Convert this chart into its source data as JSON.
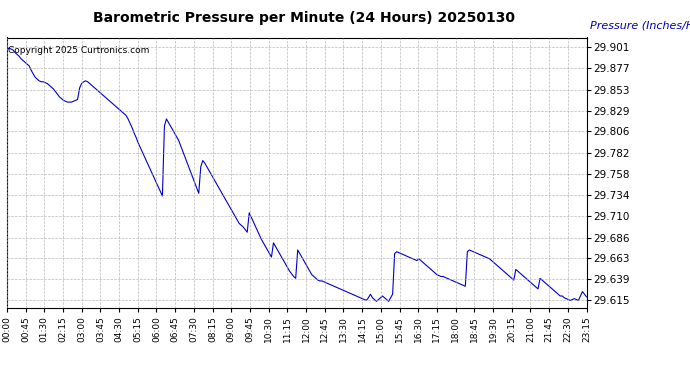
{
  "title": "Barometric Pressure per Minute (24 Hours) 20250130",
  "copyright_text": "Copyright 2025 Curtronics.com",
  "ylabel": "Pressure (Inches/Hg)",
  "background_color": "#ffffff",
  "line_color": "#0000cc",
  "ylabel_color": "#0000bb",
  "copyright_color": "#000000",
  "title_color": "#000000",
  "yticks": [
    29.615,
    29.639,
    29.663,
    29.686,
    29.71,
    29.734,
    29.758,
    29.782,
    29.806,
    29.829,
    29.853,
    29.877,
    29.901
  ],
  "ymin": 29.607,
  "ymax": 29.912,
  "x_tick_labels": [
    "00:00",
    "00:45",
    "01:30",
    "02:15",
    "03:00",
    "03:45",
    "04:30",
    "05:15",
    "06:00",
    "06:45",
    "07:30",
    "08:15",
    "09:00",
    "09:45",
    "10:30",
    "11:15",
    "12:00",
    "12:45",
    "13:30",
    "14:15",
    "15:00",
    "15:45",
    "16:30",
    "17:15",
    "18:00",
    "18:45",
    "19:30",
    "20:15",
    "21:00",
    "21:45",
    "22:30",
    "23:15"
  ],
  "grid_color": "#aaaaaa",
  "grid_linestyle": "--",
  "pressure_profile": [
    29.898,
    29.9,
    29.899,
    29.898,
    29.895,
    29.893,
    29.891,
    29.888,
    29.886,
    29.884,
    29.882,
    29.88,
    29.875,
    29.871,
    29.867,
    29.865,
    29.863,
    29.862,
    29.862,
    29.861,
    29.86,
    29.858,
    29.856,
    29.854,
    29.851,
    29.848,
    29.845,
    29.843,
    29.841,
    29.84,
    29.839,
    29.839,
    29.839,
    29.84,
    29.841,
    29.842,
    29.855,
    29.86,
    29.862,
    29.863,
    29.862,
    29.86,
    29.858,
    29.856,
    29.854,
    29.852,
    29.85,
    29.848,
    29.846,
    29.844,
    29.842,
    29.84,
    29.838,
    29.836,
    29.834,
    29.832,
    29.83,
    29.828,
    29.826,
    29.824,
    29.82,
    29.815,
    29.81,
    29.804,
    29.799,
    29.793,
    29.788,
    29.783,
    29.778,
    29.773,
    29.768,
    29.763,
    29.758,
    29.753,
    29.748,
    29.743,
    29.738,
    29.733,
    29.812,
    29.82,
    29.816,
    29.812,
    29.808,
    29.804,
    29.8,
    29.796,
    29.79,
    29.784,
    29.778,
    29.772,
    29.766,
    29.76,
    29.754,
    29.748,
    29.742,
    29.736,
    29.766,
    29.773,
    29.77,
    29.766,
    29.762,
    29.758,
    29.754,
    29.75,
    29.746,
    29.742,
    29.738,
    29.734,
    29.73,
    29.726,
    29.722,
    29.718,
    29.714,
    29.71,
    29.706,
    29.702,
    29.7,
    29.698,
    29.695,
    29.692,
    29.714,
    29.709,
    29.704,
    29.699,
    29.694,
    29.689,
    29.684,
    29.68,
    29.676,
    29.672,
    29.668,
    29.664,
    29.68,
    29.676,
    29.672,
    29.668,
    29.664,
    29.66,
    29.656,
    29.652,
    29.648,
    29.645,
    29.642,
    29.64,
    29.672,
    29.668,
    29.664,
    29.66,
    29.656,
    29.652,
    29.648,
    29.644,
    29.642,
    29.64,
    29.638,
    29.637,
    29.637,
    29.636,
    29.635,
    29.634,
    29.633,
    29.632,
    29.631,
    29.63,
    29.629,
    29.628,
    29.627,
    29.626,
    29.625,
    29.624,
    29.623,
    29.622,
    29.621,
    29.62,
    29.619,
    29.618,
    29.617,
    29.616,
    29.615,
    29.618,
    29.622,
    29.618,
    29.616,
    29.614,
    29.616,
    29.618,
    29.62,
    29.618,
    29.616,
    29.614,
    29.618,
    29.622,
    29.668,
    29.67,
    29.669,
    29.668,
    29.667,
    29.666,
    29.665,
    29.664,
    29.663,
    29.662,
    29.661,
    29.66,
    29.662,
    29.66,
    29.658,
    29.656,
    29.654,
    29.652,
    29.65,
    29.648,
    29.646,
    29.644,
    29.643,
    29.642,
    29.642,
    29.641,
    29.64,
    29.639,
    29.638,
    29.637,
    29.636,
    29.635,
    29.634,
    29.633,
    29.632,
    29.631,
    29.67,
    29.672,
    29.671,
    29.67,
    29.669,
    29.668,
    29.667,
    29.666,
    29.665,
    29.664,
    29.663,
    29.662,
    29.66,
    29.658,
    29.656,
    29.654,
    29.652,
    29.65,
    29.648,
    29.646,
    29.644,
    29.642,
    29.64,
    29.638,
    29.65,
    29.648,
    29.646,
    29.644,
    29.642,
    29.64,
    29.638,
    29.636,
    29.634,
    29.632,
    29.63,
    29.628,
    29.64,
    29.638,
    29.636,
    29.634,
    29.632,
    29.63,
    29.628,
    29.626,
    29.624,
    29.622,
    29.62,
    29.62,
    29.618,
    29.617,
    29.616,
    29.615,
    29.616,
    29.617,
    29.616,
    29.615,
    29.62,
    29.625,
    29.622,
    29.619
  ]
}
